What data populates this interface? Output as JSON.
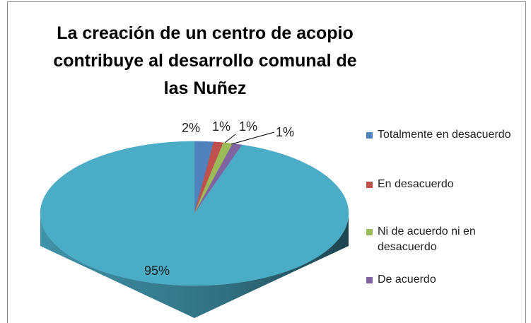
{
  "chart_data": {
    "type": "pie",
    "title": "La creación de un centro de acopio contribuye al desarrollo comunal de las Nuñez",
    "categories": [
      "Totalmente en desacuerdo",
      "En desacuerdo",
      "Ni de acuerdo ni en desacuerdo",
      "De acuerdo",
      null
    ],
    "values": [
      2,
      1,
      1,
      1,
      95
    ],
    "value_labels": [
      "2%",
      "1%",
      "1%",
      "1%",
      "95%"
    ],
    "colors": [
      "#4f81bd",
      "#c0504d",
      "#9bbb59",
      "#8064a2",
      "#4bacc6"
    ],
    "legend": "right"
  }
}
